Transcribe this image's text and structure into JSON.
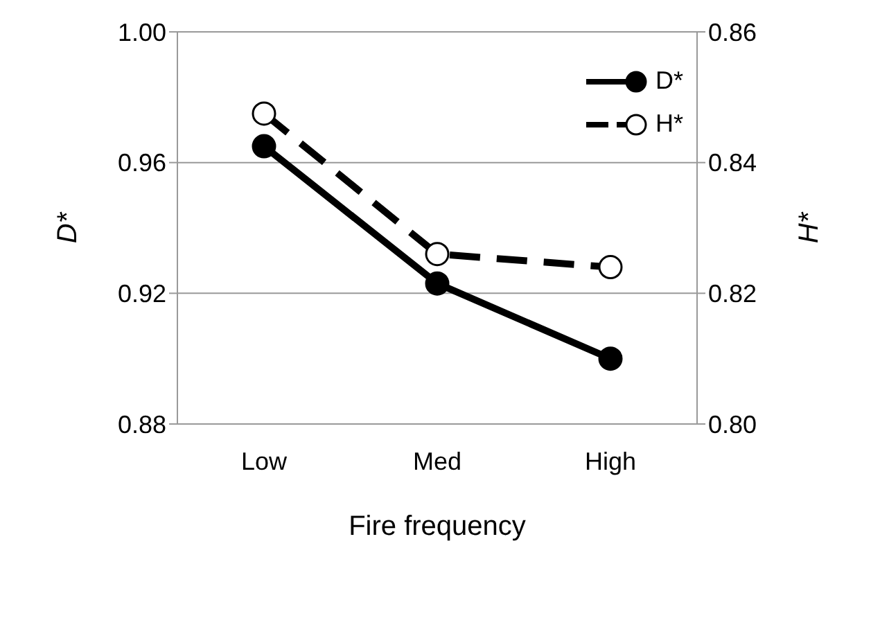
{
  "chart_data": {
    "type": "line",
    "xlabel": "Fire frequency",
    "ylabel": "D*",
    "y2label": "H*",
    "categories": [
      "Low",
      "Med",
      "High"
    ],
    "series": [
      {
        "name": "D*",
        "color": "#000000",
        "values": [
          0.965,
          0.923,
          0.9
        ],
        "line_style": "solid",
        "marker": "circle"
      },
      {
        "name": "H*",
        "color": "#000000",
        "values": [
          0.8475,
          0.826,
          0.824
        ],
        "line_style": "dashed",
        "marker": "circle",
        "axis": "y2"
      }
    ],
    "ylim": [
      0.88,
      1.0
    ],
    "yticks": [
      {
        "value": 0.88,
        "label": "0.88"
      },
      {
        "value": 0.92,
        "label": "0.92"
      },
      {
        "value": 0.96,
        "label": "0.96"
      },
      {
        "value": 1.0,
        "label": "1.00"
      }
    ],
    "y2lim": [
      0.8,
      0.86
    ],
    "y2ticks": [
      {
        "value": 0.8,
        "label": "0.80"
      },
      {
        "value": 0.82,
        "label": "0.82"
      },
      {
        "value": 0.84,
        "label": "0.84"
      },
      {
        "value": 0.86,
        "label": "0.86"
      }
    ],
    "grid": "y",
    "legend": "top right"
  }
}
